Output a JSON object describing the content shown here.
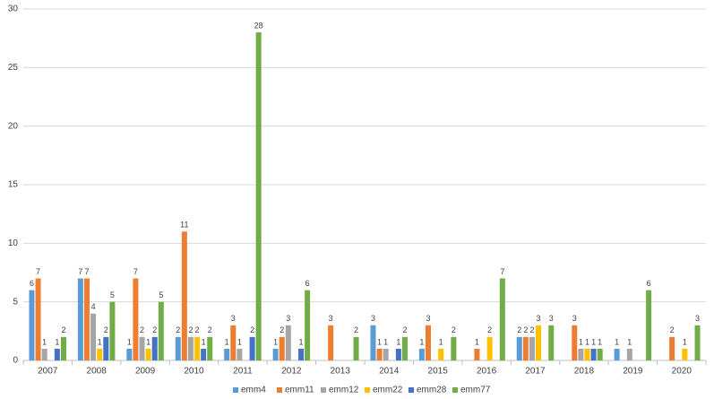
{
  "chart_data": {
    "type": "bar",
    "categories": [
      "2007",
      "2008",
      "2009",
      "2010",
      "2011",
      "2012",
      "2013",
      "2014",
      "2015",
      "2016",
      "2017",
      "2018",
      "2019",
      "2020"
    ],
    "series": [
      {
        "name": "emm4",
        "color": "#5b9bd5",
        "values": [
          6,
          7,
          1,
          2,
          1,
          1,
          null,
          3,
          1,
          null,
          2,
          null,
          1,
          null
        ]
      },
      {
        "name": "emm11",
        "color": "#ed7d31",
        "values": [
          7,
          7,
          7,
          11,
          3,
          2,
          3,
          1,
          3,
          1,
          2,
          3,
          null,
          2
        ]
      },
      {
        "name": "emm12",
        "color": "#a5a5a5",
        "values": [
          1,
          4,
          2,
          2,
          1,
          3,
          null,
          1,
          null,
          null,
          2,
          1,
          1,
          null
        ]
      },
      {
        "name": "emm22",
        "color": "#ffc000",
        "values": [
          null,
          1,
          1,
          2,
          null,
          null,
          null,
          null,
          1,
          2,
          3,
          1,
          null,
          1
        ]
      },
      {
        "name": "emm28",
        "color": "#4472c4",
        "values": [
          1,
          2,
          2,
          1,
          2,
          1,
          null,
          1,
          null,
          null,
          null,
          1,
          null,
          null
        ]
      },
      {
        "name": "emm77",
        "color": "#70ad47",
        "values": [
          2,
          5,
          5,
          2,
          28,
          6,
          2,
          2,
          2,
          7,
          3,
          1,
          6,
          3
        ]
      }
    ],
    "ylim": [
      0,
      30
    ],
    "yticks": [
      0,
      5,
      10,
      15,
      20,
      25,
      30
    ],
    "grid": true,
    "legend": "bottom"
  }
}
